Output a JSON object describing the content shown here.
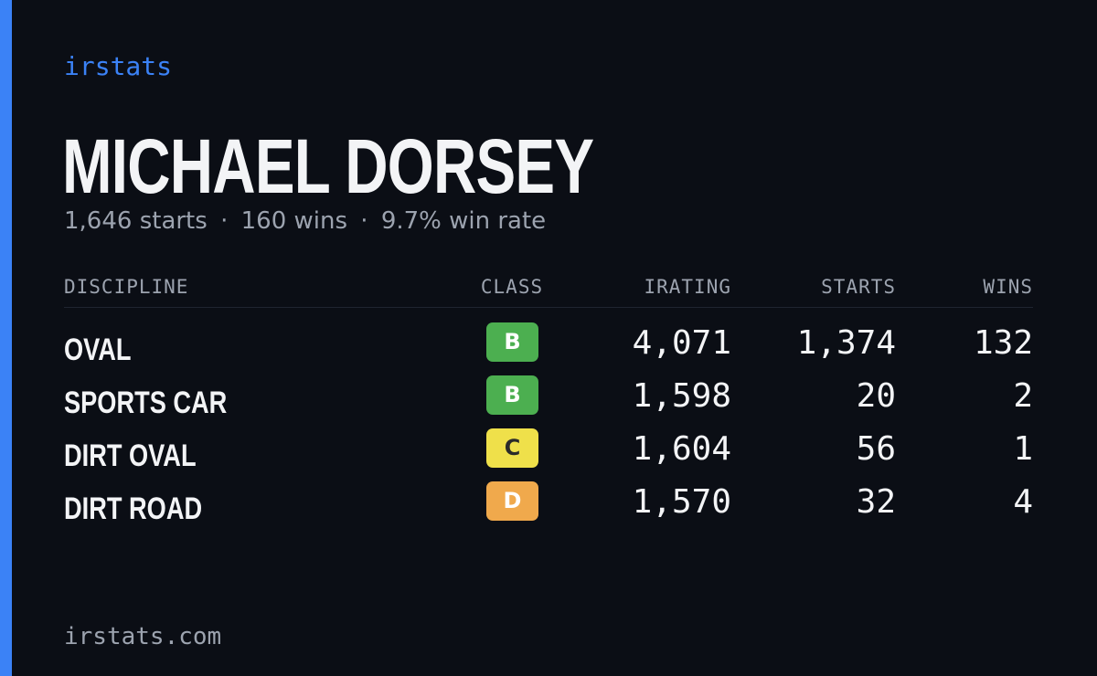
{
  "brand": "irstats",
  "driver": {
    "name": "MICHAEL DORSEY",
    "summary": {
      "starts": "1,646 starts",
      "wins": "160 wins",
      "win_rate": "9.7% win rate",
      "separator": "·"
    }
  },
  "table": {
    "headers": {
      "discipline": "DISCIPLINE",
      "class": "CLASS",
      "irating": "IRATING",
      "starts": "STARTS",
      "wins": "WINS"
    },
    "rows": [
      {
        "discipline": "OVAL",
        "class": "B",
        "class_color": "#4caf50",
        "irating": "4,071",
        "starts": "1,374",
        "wins": "132"
      },
      {
        "discipline": "SPORTS CAR",
        "class": "B",
        "class_color": "#4caf50",
        "irating": "1,598",
        "starts": "20",
        "wins": "2"
      },
      {
        "discipline": "DIRT OVAL",
        "class": "C",
        "class_color": "#efe04a",
        "irating": "1,604",
        "starts": "56",
        "wins": "1"
      },
      {
        "discipline": "DIRT ROAD",
        "class": "D",
        "class_color": "#f0a94c",
        "irating": "1,570",
        "starts": "32",
        "wins": "4"
      }
    ]
  },
  "footer": "irstats.com",
  "colors": {
    "accent": "#3b82f6",
    "background": "#0b0e15",
    "muted_text": "#9ca3af"
  }
}
